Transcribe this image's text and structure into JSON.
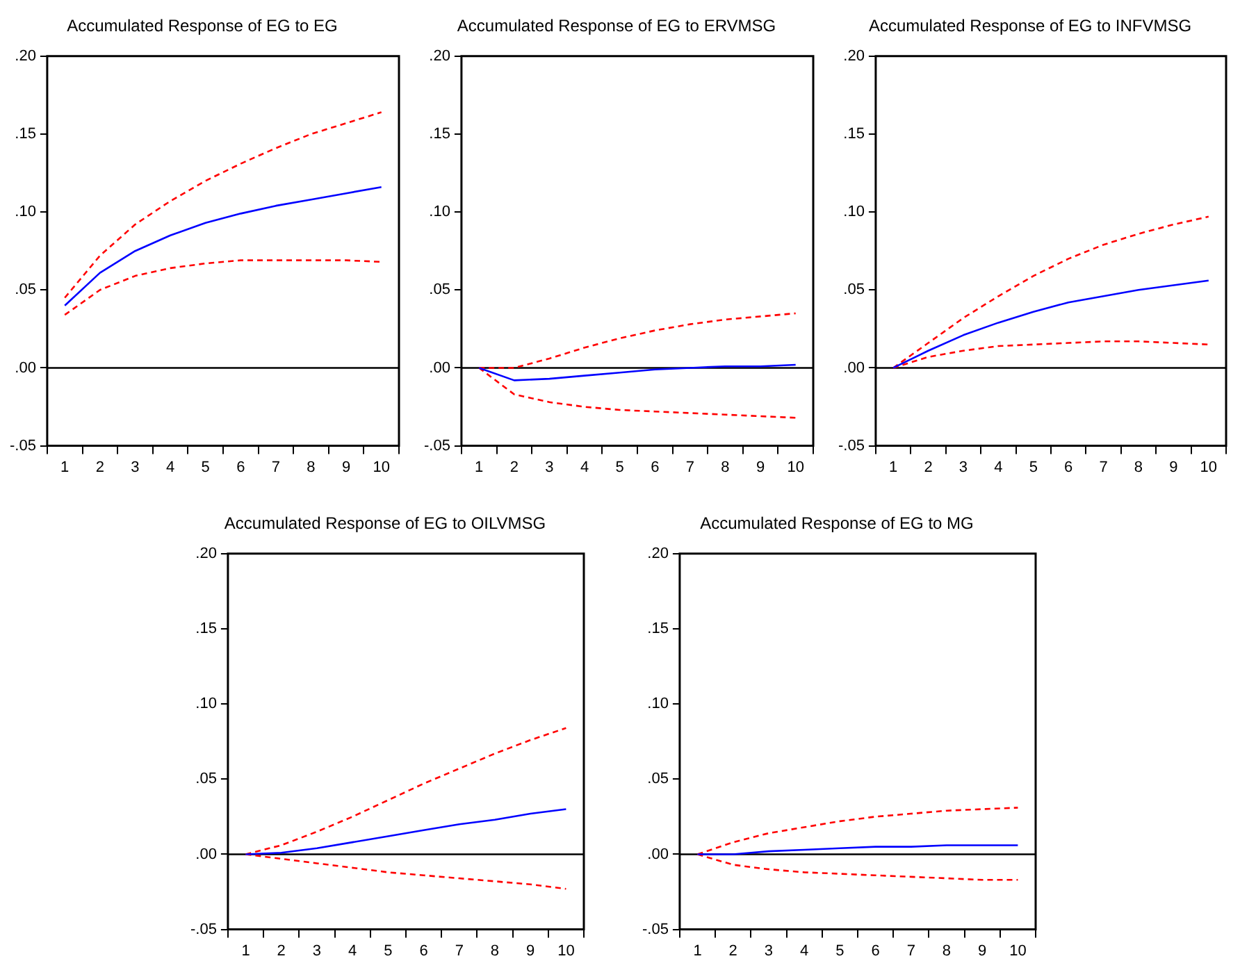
{
  "chart_data": [
    {
      "type": "line",
      "title": "Accumulated Response of EG to EG",
      "categories": [
        "1",
        "2",
        "3",
        "4",
        "5",
        "6",
        "7",
        "8",
        "9",
        "10"
      ],
      "ylim": [
        -0.05,
        0.2
      ],
      "yticks": [
        {
          "value": -0.05,
          "label": "-.05"
        },
        {
          "value": 0,
          "label": ".00"
        },
        {
          "value": 0.05,
          "label": ".05"
        },
        {
          "value": 0.1,
          "label": ".10"
        },
        {
          "value": 0.15,
          "label": ".15"
        },
        {
          "value": 0.2,
          "label": ".20"
        }
      ],
      "ref_lines": [
        {
          "axis": "y",
          "value": 0,
          "color": "#000000"
        }
      ],
      "series": [
        {
          "color": "#0000ff",
          "line_style": "solid",
          "values": [
            0.04,
            0.061,
            0.075,
            0.085,
            0.093,
            0.099,
            0.104,
            0.108,
            0.112,
            0.116
          ]
        },
        {
          "color": "#ff0000",
          "line_style": "dashed",
          "values": [
            0.045,
            0.072,
            0.092,
            0.107,
            0.12,
            0.131,
            0.141,
            0.15,
            0.157,
            0.164
          ]
        },
        {
          "color": "#ff0000",
          "line_style": "dashed",
          "values": [
            0.034,
            0.05,
            0.059,
            0.064,
            0.067,
            0.069,
            0.069,
            0.069,
            0.069,
            0.068
          ]
        }
      ]
    },
    {
      "type": "line",
      "title": "Accumulated Response of EG to ERVMSG",
      "categories": [
        "1",
        "2",
        "3",
        "4",
        "5",
        "6",
        "7",
        "8",
        "9",
        "10"
      ],
      "ylim": [
        -0.05,
        0.2
      ],
      "yticks": [
        {
          "value": -0.05,
          "label": "-.05"
        },
        {
          "value": 0,
          "label": ".00"
        },
        {
          "value": 0.05,
          "label": ".05"
        },
        {
          "value": 0.1,
          "label": ".10"
        },
        {
          "value": 0.15,
          "label": ".15"
        },
        {
          "value": 0.2,
          "label": ".20"
        }
      ],
      "ref_lines": [
        {
          "axis": "y",
          "value": 0,
          "color": "#000000"
        }
      ],
      "series": [
        {
          "color": "#0000ff",
          "line_style": "solid",
          "values": [
            0,
            -0.008,
            -0.007,
            -0.005,
            -0.003,
            -0.001,
            0,
            0.001,
            0.001,
            0.002
          ]
        },
        {
          "color": "#ff0000",
          "line_style": "dashed",
          "values": [
            0,
            0,
            0.006,
            0.013,
            0.019,
            0.024,
            0.028,
            0.031,
            0.033,
            0.035
          ]
        },
        {
          "color": "#ff0000",
          "line_style": "dashed",
          "values": [
            0,
            -0.017,
            -0.022,
            -0.025,
            -0.027,
            -0.028,
            -0.029,
            -0.03,
            -0.031,
            -0.032
          ]
        }
      ]
    },
    {
      "type": "line",
      "title": "Accumulated Response of EG to INFVMSG",
      "categories": [
        "1",
        "2",
        "3",
        "4",
        "5",
        "6",
        "7",
        "8",
        "9",
        "10"
      ],
      "ylim": [
        -0.05,
        0.2
      ],
      "yticks": [
        {
          "value": -0.05,
          "label": "-.05"
        },
        {
          "value": 0,
          "label": ".00"
        },
        {
          "value": 0.05,
          "label": ".05"
        },
        {
          "value": 0.1,
          "label": ".10"
        },
        {
          "value": 0.15,
          "label": ".15"
        },
        {
          "value": 0.2,
          "label": ".20"
        }
      ],
      "ref_lines": [
        {
          "axis": "y",
          "value": 0,
          "color": "#000000"
        }
      ],
      "series": [
        {
          "color": "#0000ff",
          "line_style": "solid",
          "values": [
            0,
            0.011,
            0.021,
            0.029,
            0.036,
            0.042,
            0.046,
            0.05,
            0.053,
            0.056
          ]
        },
        {
          "color": "#ff0000",
          "line_style": "dashed",
          "values": [
            0,
            0.016,
            0.032,
            0.046,
            0.059,
            0.07,
            0.079,
            0.086,
            0.092,
            0.097
          ]
        },
        {
          "color": "#ff0000",
          "line_style": "dashed",
          "values": [
            0,
            0.007,
            0.011,
            0.014,
            0.015,
            0.016,
            0.017,
            0.017,
            0.016,
            0.015
          ]
        }
      ]
    },
    {
      "type": "line",
      "title": "Accumulated Response of EG to OILVMSG",
      "categories": [
        "1",
        "2",
        "3",
        "4",
        "5",
        "6",
        "7",
        "8",
        "9",
        "10"
      ],
      "ylim": [
        -0.05,
        0.2
      ],
      "yticks": [
        {
          "value": -0.05,
          "label": "-.05"
        },
        {
          "value": 0,
          "label": ".00"
        },
        {
          "value": 0.05,
          "label": ".05"
        },
        {
          "value": 0.1,
          "label": ".10"
        },
        {
          "value": 0.15,
          "label": ".15"
        },
        {
          "value": 0.2,
          "label": ".20"
        }
      ],
      "ref_lines": [
        {
          "axis": "y",
          "value": 0,
          "color": "#000000"
        }
      ],
      "series": [
        {
          "color": "#0000ff",
          "line_style": "solid",
          "values": [
            0,
            0.001,
            0.004,
            0.008,
            0.012,
            0.016,
            0.02,
            0.023,
            0.027,
            0.03
          ]
        },
        {
          "color": "#ff0000",
          "line_style": "dashed",
          "values": [
            0,
            0.006,
            0.015,
            0.025,
            0.036,
            0.047,
            0.057,
            0.067,
            0.076,
            0.084
          ]
        },
        {
          "color": "#ff0000",
          "line_style": "dashed",
          "values": [
            0,
            -0.003,
            -0.006,
            -0.009,
            -0.012,
            -0.014,
            -0.016,
            -0.018,
            -0.02,
            -0.023
          ]
        }
      ]
    },
    {
      "type": "line",
      "title": "Accumulated Response of EG to MG",
      "categories": [
        "1",
        "2",
        "3",
        "4",
        "5",
        "6",
        "7",
        "8",
        "9",
        "10"
      ],
      "ylim": [
        -0.05,
        0.2
      ],
      "yticks": [
        {
          "value": -0.05,
          "label": "-.05"
        },
        {
          "value": 0,
          "label": ".00"
        },
        {
          "value": 0.05,
          "label": ".05"
        },
        {
          "value": 0.1,
          "label": ".10"
        },
        {
          "value": 0.15,
          "label": ".15"
        },
        {
          "value": 0.2,
          "label": ".20"
        }
      ],
      "ref_lines": [
        {
          "axis": "y",
          "value": 0,
          "color": "#000000"
        }
      ],
      "series": [
        {
          "color": "#0000ff",
          "line_style": "solid",
          "values": [
            0,
            0,
            0.002,
            0.003,
            0.004,
            0.005,
            0.005,
            0.006,
            0.006,
            0.006
          ]
        },
        {
          "color": "#ff0000",
          "line_style": "dashed",
          "values": [
            0,
            0.008,
            0.014,
            0.018,
            0.022,
            0.025,
            0.027,
            0.029,
            0.03,
            0.031
          ]
        },
        {
          "color": "#ff0000",
          "line_style": "dashed",
          "values": [
            0,
            -0.007,
            -0.01,
            -0.012,
            -0.013,
            -0.014,
            -0.015,
            -0.016,
            -0.017,
            -0.017
          ]
        }
      ]
    }
  ]
}
